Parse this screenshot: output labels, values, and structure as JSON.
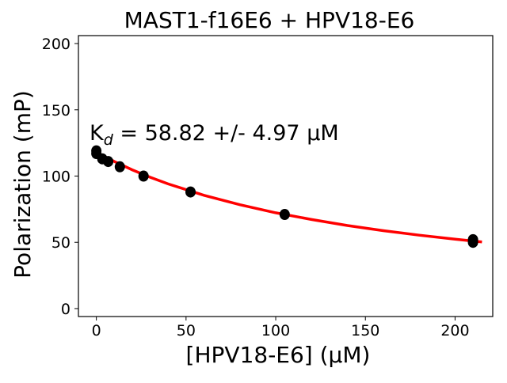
{
  "chart_data": {
    "type": "scatter",
    "title": "MAST1-f16E6 + HPV18-E6",
    "xlabel": "[HPV18-E6] (µM)",
    "ylabel": "Polarization (mP)",
    "xlim": [
      -10,
      221
    ],
    "ylim": [
      -6,
      206
    ],
    "xticks": [
      0,
      50,
      100,
      150,
      200
    ],
    "yticks": [
      0,
      50,
      100,
      150,
      200
    ],
    "annotation": {
      "prefix": "K",
      "subscript": "d",
      "text": " = 58.82 +/- 4.97 µM"
    },
    "series": [
      {
        "name": "measured",
        "color": "#000000",
        "x": [
          0,
          0,
          3.3,
          6.6,
          13.1,
          26.3,
          52.5,
          105,
          210,
          210
        ],
        "y": [
          119,
          117,
          113,
          111,
          107,
          100,
          88,
          71,
          52,
          50
        ]
      },
      {
        "name": "fit",
        "color": "#ff0000",
        "x": [
          0,
          10,
          20,
          30,
          40,
          60,
          80,
          100,
          120,
          140,
          160,
          180,
          200,
          215
        ],
        "y": [
          118,
          111.0,
          104.7,
          99.1,
          94.1,
          85.5,
          78.4,
          72.3,
          67.2,
          62.7,
          58.8,
          55.4,
          52.4,
          50.3
        ]
      }
    ],
    "grid": false,
    "legend": "none"
  }
}
